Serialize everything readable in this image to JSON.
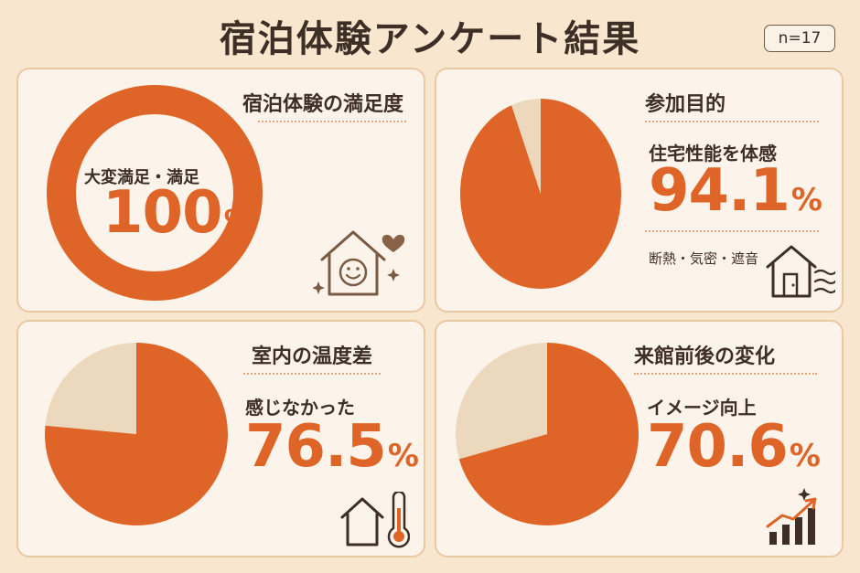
{
  "title": "宿泊体験アンケート結果",
  "sample_size": "n=17",
  "cards": [
    {
      "heading": "宿泊体験の満足度",
      "label": "大変満足・満足",
      "value": "100",
      "unit": "%",
      "icon": "smiling-house-heart-icon"
    },
    {
      "heading": "参加目的",
      "label": "住宅性能を体感",
      "value": "94.1",
      "unit": "%",
      "note": "断熱・気密・遮音",
      "icon": "house-wind-icon"
    },
    {
      "heading": "室内の温度差",
      "label": "感じなかった",
      "value": "76.5",
      "unit": "%",
      "icon": "house-thermometer-icon"
    },
    {
      "heading": "来館前後の変化",
      "label": "イメージ向上",
      "value": "70.6",
      "unit": "%",
      "icon": "growth-chart-icon"
    }
  ],
  "colors": {
    "accent": "#de6428",
    "remainder": "#ecd9bd",
    "text": "#3d2e26",
    "border": "#e9c9a4"
  },
  "chart_data": [
    {
      "type": "pie",
      "variant": "donut",
      "title": "宿泊体験の満足度",
      "categories": [
        "大変満足・満足"
      ],
      "values": [
        100
      ]
    },
    {
      "type": "pie",
      "title": "参加目的",
      "categories": [
        "住宅性能を体感",
        ""
      ],
      "values": [
        94.1,
        5.9
      ]
    },
    {
      "type": "pie",
      "title": "室内の温度差",
      "categories": [
        "感じなかった",
        ""
      ],
      "values": [
        76.5,
        23.5
      ]
    },
    {
      "type": "pie",
      "title": "来館前後の変化",
      "categories": [
        "イメージ向上",
        ""
      ],
      "values": [
        70.6,
        29.4
      ]
    }
  ]
}
